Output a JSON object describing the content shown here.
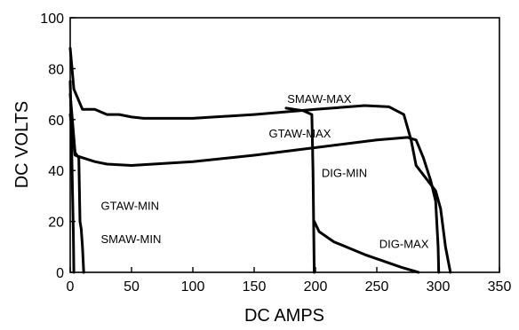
{
  "chart_data": {
    "type": "line",
    "title": "",
    "xlabel": "DC AMPS",
    "ylabel": "DC VOLTS",
    "xlim": [
      0,
      350
    ],
    "ylim": [
      0,
      100
    ],
    "x_ticks": [
      "0",
      "50",
      "100",
      "150",
      "200",
      "250",
      "300",
      "350"
    ],
    "y_ticks": [
      "0",
      "20",
      "40",
      "60",
      "80",
      "100"
    ],
    "grid": false,
    "legend": "none",
    "series": [
      {
        "name": "SMAW-MAX",
        "points": [
          [
            0,
            88
          ],
          [
            3,
            72
          ],
          [
            10,
            64
          ],
          [
            20,
            64
          ],
          [
            30,
            62
          ],
          [
            40,
            62
          ],
          [
            50,
            61
          ],
          [
            60,
            60.5
          ],
          [
            100,
            60.5
          ],
          [
            150,
            62
          ],
          [
            200,
            64
          ],
          [
            240,
            65.5
          ],
          [
            260,
            65
          ],
          [
            272,
            62
          ],
          [
            278,
            52
          ],
          [
            282,
            42
          ],
          [
            290,
            37
          ],
          [
            298,
            32
          ],
          [
            302,
            25
          ],
          [
            306,
            10
          ],
          [
            310,
            0
          ]
        ]
      },
      {
        "name": "GTAW-MAX",
        "points": [
          [
            0,
            62
          ],
          [
            4,
            46
          ],
          [
            10,
            45
          ],
          [
            20,
            43.5
          ],
          [
            30,
            42.5
          ],
          [
            50,
            42
          ],
          [
            100,
            43.5
          ],
          [
            150,
            46
          ],
          [
            200,
            49
          ],
          [
            250,
            52
          ],
          [
            275,
            53
          ],
          [
            282,
            52
          ],
          [
            288,
            45
          ],
          [
            294,
            36
          ],
          [
            298,
            28
          ],
          [
            300,
            10
          ],
          [
            300.5,
            0
          ]
        ]
      },
      {
        "name": "DIG-MIN",
        "points": [
          [
            176,
            64.5
          ],
          [
            190,
            63.5
          ],
          [
            197,
            62
          ],
          [
            198,
            40
          ],
          [
            198.5,
            20
          ],
          [
            199,
            0
          ]
        ]
      },
      {
        "name": "DIG-MAX",
        "points": [
          [
            199,
            20
          ],
          [
            203,
            16
          ],
          [
            215,
            12
          ],
          [
            240,
            7
          ],
          [
            270,
            2
          ],
          [
            284,
            0
          ]
        ]
      },
      {
        "name": "GTAW-MIN",
        "points": [
          [
            0,
            75
          ],
          [
            1,
            55
          ],
          [
            1.5,
            40
          ],
          [
            2,
            28
          ],
          [
            2.5,
            16
          ],
          [
            3,
            0
          ]
        ]
      },
      {
        "name": "SMAW-MIN",
        "points": [
          [
            0,
            70
          ],
          [
            4,
            47
          ],
          [
            7,
            45
          ],
          [
            8,
            20
          ],
          [
            9,
            17
          ],
          [
            10,
            10
          ],
          [
            11,
            0
          ]
        ]
      }
    ],
    "annotations": [
      {
        "text": "SMAW-MAX",
        "x": 177,
        "y": 66.5
      },
      {
        "text": "GTAW-MAX",
        "x": 162,
        "y": 53
      },
      {
        "text": "DIG-MIN",
        "x": 205,
        "y": 37.5
      },
      {
        "text": "DIG-MAX",
        "x": 252,
        "y": 9.5
      },
      {
        "text": "GTAW-MIN",
        "x": 25,
        "y": 24.5
      },
      {
        "text": "SMAW-MIN",
        "x": 25,
        "y": 11.5
      }
    ]
  }
}
